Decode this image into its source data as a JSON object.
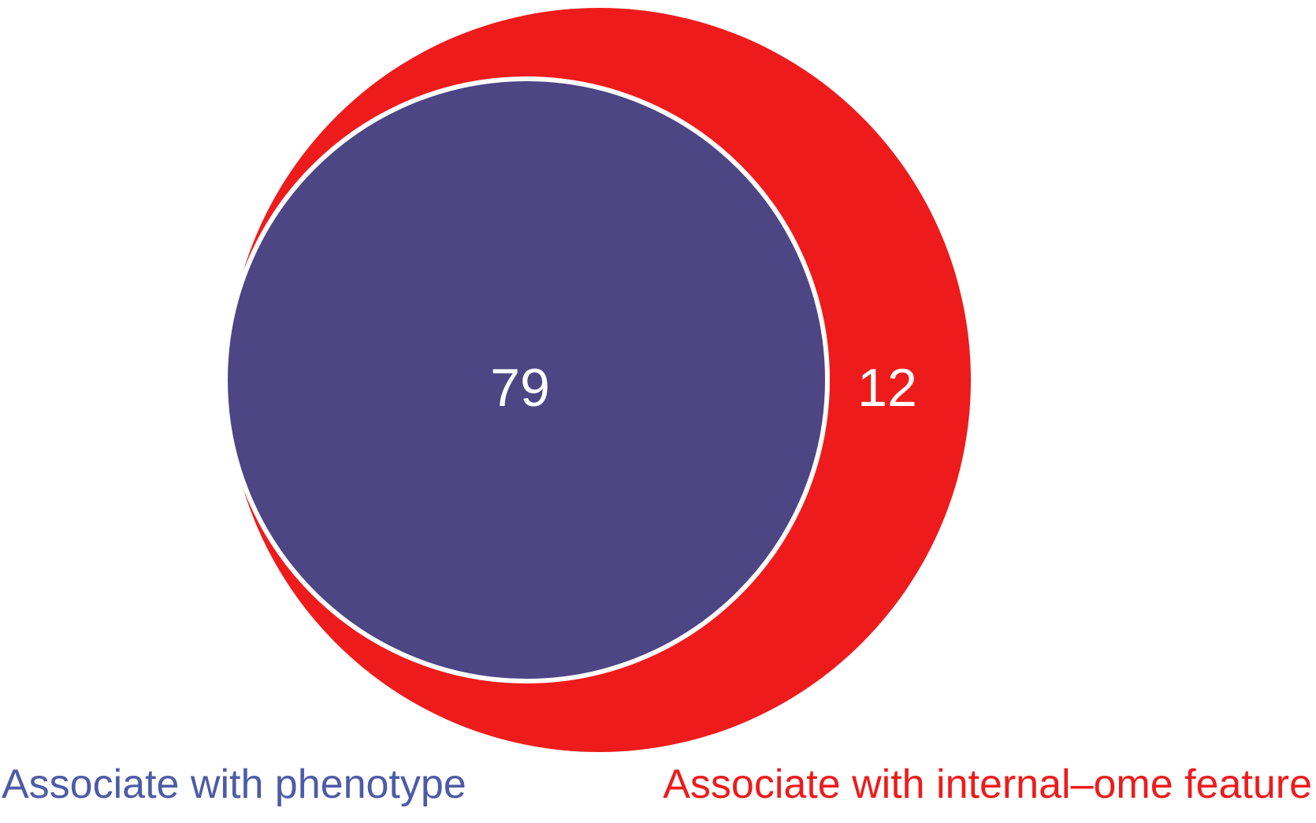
{
  "venn": {
    "sets": [
      {
        "id": "phenotype",
        "label": "Associate with phenotype",
        "color": "#4D4584",
        "label_color": "#4D5BA7"
      },
      {
        "id": "internal_ome",
        "label": "Associate with internal–ome feature",
        "color": "#EE1B1C",
        "label_color": "#EE1B1C"
      }
    ],
    "regions": {
      "phenotype_and_internal_ome": "79",
      "internal_ome_only": "12"
    },
    "relationship": "phenotype set is fully contained within internal-ome set",
    "outline_color": "#FFFFFF"
  }
}
